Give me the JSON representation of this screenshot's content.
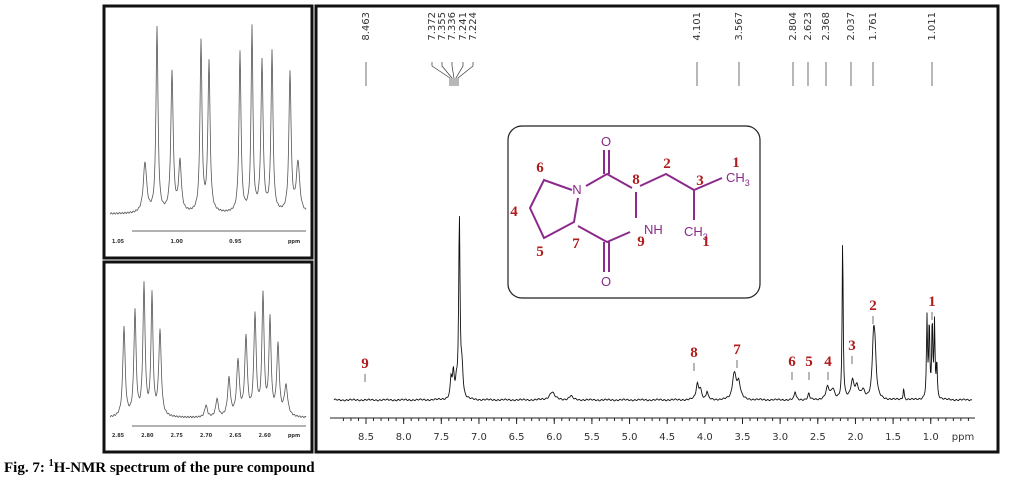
{
  "insets": [
    {
      "ticks": [
        "1.05",
        "1.00",
        "0.95",
        "ppm"
      ]
    },
    {
      "ticks": [
        "2.85",
        "2.80",
        "2.75",
        "2.70",
        "2.65",
        "2.60",
        "ppm"
      ]
    }
  ],
  "spectrum": {
    "peak_labels": [
      "8.463",
      "7.372",
      "7.355",
      "7.336",
      "7.241",
      "7.224",
      "4.101",
      "3.567",
      "2.804",
      "2.623",
      "2.368",
      "2.037",
      "1.761",
      "1.011"
    ],
    "axis_ticks": [
      "8.5",
      "8.0",
      "7.5",
      "7.0",
      "6.5",
      "6.0",
      "5.5",
      "5.0",
      "4.5",
      "4.0",
      "3.5",
      "3.0",
      "2.5",
      "2.0",
      "1.5",
      "1.0"
    ],
    "axis_unit": "ppm",
    "assignments": [
      "9",
      "8",
      "7",
      "6",
      "5",
      "4",
      "3",
      "2",
      "1"
    ]
  },
  "structure": {
    "atoms": [
      "O",
      "N",
      "O"
    ],
    "groups": [
      {
        "text": "NH"
      },
      {
        "text": "CH",
        "sub": "3"
      },
      {
        "text": "CH",
        "sub": "3"
      }
    ],
    "numbers": [
      "6",
      "2",
      "1",
      "3",
      "8",
      "4",
      "9",
      "1",
      "5",
      "7"
    ]
  },
  "caption": {
    "prefix": "Fig. 7: ",
    "superscript": "1",
    "text": "H-NMR spectrum of the pure compound"
  }
}
